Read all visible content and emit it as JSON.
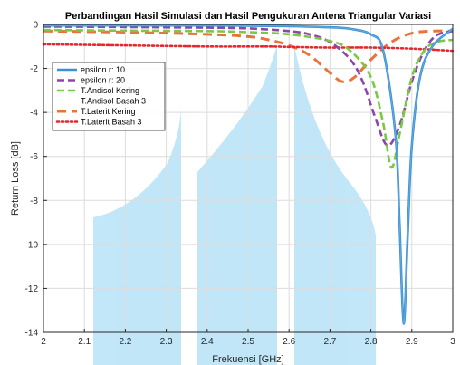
{
  "chart_data": {
    "type": "line",
    "title": "Perbandingan Hasil Simulasi dan Hasil Pengukuran Antena Triangular Variasi",
    "xlabel": "Frekuensi [GHz]",
    "ylabel": "Return Loss [dB]",
    "xlim": [
      2,
      3
    ],
    "ylim": [
      -14,
      0
    ],
    "xticks": [
      "2",
      "2.1",
      "2.2",
      "2.3",
      "2.4",
      "2.5",
      "2.6",
      "2.7",
      "2.8",
      "2.9",
      "3"
    ],
    "yticks": [
      "0",
      "-2",
      "-4",
      "-6",
      "-8",
      "-10",
      "-12",
      "-14"
    ],
    "grid": true,
    "legend_position": "top-left",
    "series": [
      {
        "name": "epsilon r: 10",
        "color": "#3c8fd2",
        "style": "solid-thick",
        "x": [
          2.0,
          2.2,
          2.4,
          2.5,
          2.6,
          2.7,
          2.75,
          2.8,
          2.83,
          2.86,
          2.87,
          2.88,
          2.89,
          2.9,
          2.92,
          2.95,
          3.0
        ],
        "y": [
          -0.05,
          -0.05,
          -0.05,
          -0.06,
          -0.08,
          -0.13,
          -0.2,
          -0.45,
          -1.2,
          -5.0,
          -9.0,
          -13.6,
          -9.5,
          -5.5,
          -2.4,
          -1.0,
          -0.2
        ]
      },
      {
        "name": "epsilon r: 20",
        "color": "#8e44ad",
        "style": "dashed",
        "x": [
          2.0,
          2.2,
          2.4,
          2.5,
          2.6,
          2.65,
          2.7,
          2.75,
          2.78,
          2.81,
          2.84,
          2.87,
          2.9,
          2.93,
          2.96,
          3.0
        ],
        "y": [
          -0.1,
          -0.12,
          -0.15,
          -0.18,
          -0.3,
          -0.45,
          -0.8,
          -1.6,
          -2.6,
          -4.2,
          -5.5,
          -4.6,
          -2.6,
          -1.2,
          -0.5,
          -0.3
        ]
      },
      {
        "name": "T.Andisol Kering",
        "color": "#7ac943",
        "style": "dashed",
        "x": [
          2.0,
          2.2,
          2.4,
          2.5,
          2.6,
          2.7,
          2.75,
          2.8,
          2.83,
          2.85,
          2.87,
          2.9,
          2.93,
          2.96,
          3.0
        ],
        "y": [
          -0.25,
          -0.28,
          -0.3,
          -0.35,
          -0.45,
          -0.75,
          -1.2,
          -2.4,
          -4.5,
          -6.5,
          -5.0,
          -2.4,
          -1.2,
          -0.8,
          -0.7
        ]
      },
      {
        "name": "T.Andisol Basah 3",
        "color": "#5dade2",
        "style": "solid-thin",
        "x": [
          2.0,
          2.2,
          2.4,
          2.5,
          2.6,
          2.7,
          2.75,
          2.8,
          2.83,
          2.86,
          2.87,
          2.88,
          2.89,
          2.9,
          2.92,
          2.95,
          3.0
        ],
        "y": [
          -0.05,
          -0.05,
          -0.05,
          -0.06,
          -0.08,
          -0.13,
          -0.2,
          -0.45,
          -1.2,
          -5.0,
          -9.0,
          -13.6,
          -9.5,
          -5.5,
          -2.4,
          -1.0,
          -0.2
        ]
      },
      {
        "name": "T.Laterit Kering",
        "color": "#e8743b",
        "style": "dashed-thick",
        "x": [
          2.0,
          2.2,
          2.4,
          2.5,
          2.55,
          2.6,
          2.65,
          2.7,
          2.73,
          2.76,
          2.8,
          2.85,
          2.9,
          2.95,
          3.0
        ],
        "y": [
          -0.3,
          -0.35,
          -0.45,
          -0.55,
          -0.7,
          -0.95,
          -1.4,
          -2.2,
          -2.6,
          -2.4,
          -1.6,
          -0.8,
          -0.4,
          -0.3,
          -0.3
        ]
      },
      {
        "name": "T.Laterit Basah 3",
        "color": "#e8262b",
        "style": "dotted",
        "x": [
          2.0,
          2.2,
          2.4,
          2.55,
          2.6,
          2.7,
          2.8,
          2.9,
          3.0
        ],
        "y": [
          -0.9,
          -0.95,
          -1.0,
          -1.0,
          -1.02,
          -1.05,
          -1.05,
          -1.1,
          -1.2
        ]
      }
    ]
  }
}
